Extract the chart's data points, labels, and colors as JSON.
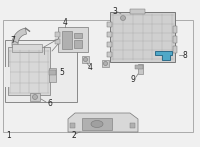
{
  "bg_color": "#f0f0f0",
  "border_color": "#999999",
  "comp_gray": "#c8c8c8",
  "comp_dark": "#b0b0b0",
  "comp_light": "#d8d8d8",
  "highlight": "#4fa8c8",
  "line_color": "#777777",
  "label_color": "#222222",
  "figsize": [
    2.0,
    1.47
  ],
  "dpi": 100
}
